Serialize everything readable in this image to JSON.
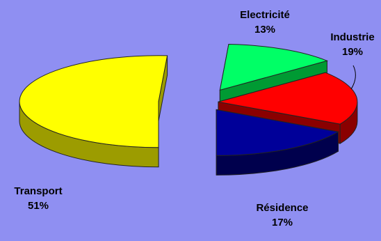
{
  "chart_data": {
    "type": "pie",
    "variant": "3d-exploded",
    "background": "#8f8ff2",
    "slices": [
      {
        "label": "Transport",
        "value": 51,
        "value_label": "51%",
        "color": "#ffff00",
        "side_color": "#9c9c00"
      },
      {
        "label": "Electricité",
        "value": 13,
        "value_label": "13%",
        "color": "#00ff66",
        "side_color": "#009a33"
      },
      {
        "label": "Industrie",
        "value": 19,
        "value_label": "19%",
        "color": "#ff0000",
        "side_color": "#8a0000"
      },
      {
        "label": "Résidence",
        "value": 17,
        "value_label": "17%",
        "color": "#000099",
        "side_color": "#00004d"
      }
    ]
  }
}
